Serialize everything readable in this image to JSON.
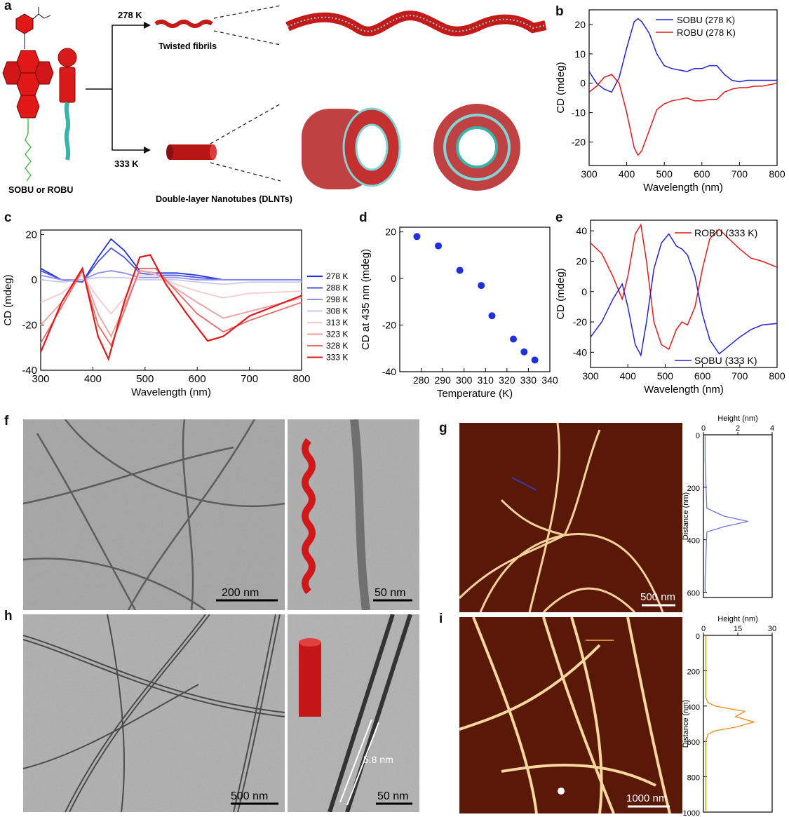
{
  "panels": {
    "a": "a",
    "b": "b",
    "c": "c",
    "d": "d",
    "e": "e",
    "f": "f",
    "g": "g",
    "h": "h",
    "i": "i"
  },
  "scheme": {
    "molecule_label": "SOBU or ROBU",
    "temp_low": "278 K",
    "temp_high": "333 K",
    "low_product": "Twisted fibrils",
    "high_product": "Double-layer Nanotubes (DLNTs)"
  },
  "colors": {
    "blue": "#2323d6",
    "red": "#e01818",
    "orange": "#f08a18",
    "fibril_red": "#c41a1a",
    "cyan": "#7fd5d5"
  },
  "chart_data": [
    {
      "id": "b",
      "type": "line",
      "xlabel": "Wavelength (nm)",
      "ylabel": "CD (mdeg)",
      "xlim": [
        300,
        800
      ],
      "ylim": [
        -28,
        25
      ],
      "xticks": [
        300,
        400,
        500,
        600,
        700,
        800
      ],
      "yticks": [
        -20,
        -10,
        0,
        10,
        20
      ],
      "legend_position": "top-right",
      "series": [
        {
          "name": "SOBU (278 K)",
          "color": "#2323d6",
          "x": [
            300,
            320,
            340,
            360,
            380,
            400,
            420,
            430,
            440,
            460,
            480,
            500,
            520,
            540,
            560,
            580,
            600,
            620,
            640,
            660,
            680,
            700,
            720,
            740,
            760,
            780,
            800
          ],
          "y": [
            4,
            0,
            -2,
            -3,
            2,
            12,
            21,
            22,
            21,
            17,
            10,
            6,
            5,
            4.5,
            4,
            5,
            5,
            6,
            6,
            3,
            1,
            0.5,
            1,
            1,
            1,
            1,
            1
          ]
        },
        {
          "name": "ROBU (278 K)",
          "color": "#e01818",
          "x": [
            300,
            320,
            340,
            360,
            380,
            400,
            420,
            430,
            440,
            460,
            480,
            500,
            520,
            540,
            560,
            580,
            600,
            620,
            640,
            660,
            680,
            700,
            720,
            740,
            760,
            780,
            800
          ],
          "y": [
            -3,
            -1,
            2,
            3,
            0,
            -10,
            -22,
            -24.5,
            -23,
            -16,
            -9,
            -7,
            -6,
            -5.5,
            -5,
            -6,
            -6,
            -5.5,
            -5.5,
            -3,
            -2,
            -1.5,
            -1.5,
            -1,
            -1,
            -0.5,
            0
          ]
        }
      ]
    },
    {
      "id": "c",
      "type": "line",
      "xlabel": "Wavelength (nm)",
      "ylabel": "CD (mdeg)",
      "xlim": [
        300,
        800
      ],
      "ylim": [
        -40,
        22
      ],
      "xticks": [
        300,
        400,
        500,
        600,
        700,
        800
      ],
      "yticks": [
        -40,
        -20,
        0,
        20
      ],
      "legend_position": "right",
      "series": [
        {
          "name": "278 K",
          "color": "#1f2fe0",
          "x": [
            300,
            340,
            380,
            410,
            435,
            460,
            490,
            520,
            560,
            600,
            650,
            700,
            800
          ],
          "y": [
            5,
            0,
            -1,
            10,
            18,
            13,
            4,
            3,
            3,
            2,
            0,
            0,
            0
          ]
        },
        {
          "name": "288 K",
          "color": "#4a55e0",
          "x": [
            300,
            340,
            380,
            410,
            435,
            460,
            490,
            520,
            560,
            600,
            650,
            700,
            800
          ],
          "y": [
            4,
            0,
            -1,
            8,
            14,
            10,
            3,
            2,
            2,
            1,
            0,
            0,
            0
          ]
        },
        {
          "name": "298 K",
          "color": "#8c90ee",
          "x": [
            300,
            340,
            380,
            410,
            435,
            460,
            490,
            520,
            560,
            600,
            650,
            700,
            800
          ],
          "y": [
            2,
            0,
            0,
            3,
            4,
            3,
            1,
            1,
            1,
            0,
            0,
            0,
            0
          ]
        },
        {
          "name": "308 K",
          "color": "#c9c9f2",
          "x": [
            300,
            340,
            380,
            410,
            435,
            460,
            490,
            520,
            560,
            600,
            650,
            700,
            800
          ],
          "y": [
            0,
            -1,
            0,
            1,
            1,
            1,
            0,
            0,
            0,
            -1,
            -2,
            -1,
            -1
          ]
        },
        {
          "name": "313 K",
          "color": "#f4cccc",
          "x": [
            300,
            340,
            380,
            410,
            435,
            460,
            490,
            520,
            560,
            600,
            650,
            700,
            800
          ],
          "y": [
            -10,
            -6,
            2,
            -8,
            -15,
            -8,
            2,
            2,
            -2,
            -5,
            -8,
            -6,
            -5
          ]
        },
        {
          "name": "323 K",
          "color": "#ee9d9d",
          "x": [
            300,
            340,
            380,
            410,
            435,
            460,
            490,
            520,
            560,
            600,
            650,
            700,
            800
          ],
          "y": [
            -20,
            -10,
            4,
            -15,
            -25,
            -12,
            4,
            3,
            -4,
            -10,
            -17,
            -14,
            -8
          ]
        },
        {
          "name": "328 K",
          "color": "#e86a6a",
          "x": [
            300,
            340,
            380,
            410,
            435,
            460,
            490,
            520,
            560,
            600,
            650,
            700,
            800
          ],
          "y": [
            -28,
            -12,
            4,
            -20,
            -29,
            -14,
            5,
            5,
            -5,
            -15,
            -23,
            -18,
            -10
          ]
        },
        {
          "name": "333 K",
          "color": "#e01818",
          "x": [
            300,
            340,
            380,
            410,
            430,
            460,
            490,
            510,
            540,
            580,
            620,
            650,
            700,
            800
          ],
          "y": [
            -32,
            -10,
            5,
            -25,
            -35,
            -10,
            10,
            11,
            -2,
            -15,
            -27,
            -25,
            -16,
            -7
          ]
        }
      ]
    },
    {
      "id": "d",
      "type": "scatter",
      "xlabel": "Temperature (K)",
      "ylabel": "CD at 435 nm (mdeg)",
      "xlim": [
        270,
        340
      ],
      "ylim": [
        -40,
        22
      ],
      "xticks": [
        280,
        290,
        300,
        310,
        320,
        330,
        340
      ],
      "yticks": [
        -40,
        -20,
        0,
        20
      ],
      "color": "#1f2fe0",
      "x": [
        278,
        288,
        298,
        308,
        313,
        323,
        328,
        333
      ],
      "y": [
        18,
        14,
        3.5,
        -3,
        -16,
        -26,
        -31.5,
        -35
      ]
    },
    {
      "id": "e",
      "type": "line",
      "xlabel": "Wavelength (nm)",
      "ylabel": "CD (mdeg)",
      "xlim": [
        300,
        800
      ],
      "ylim": [
        -50,
        47
      ],
      "xticks": [
        300,
        400,
        500,
        600,
        700,
        800
      ],
      "yticks": [
        -40,
        -20,
        0,
        20,
        40
      ],
      "series": [
        {
          "name": "ROBU (333 K)",
          "color": "#e01818",
          "x": [
            300,
            330,
            360,
            385,
            400,
            420,
            435,
            450,
            470,
            490,
            510,
            530,
            545,
            560,
            580,
            600,
            620,
            645,
            670,
            700,
            730,
            760,
            800
          ],
          "y": [
            32,
            25,
            10,
            -5,
            10,
            38,
            44,
            20,
            -20,
            -35,
            -38,
            -25,
            -20,
            -22,
            -10,
            15,
            35,
            41,
            35,
            28,
            22,
            20,
            16
          ]
        },
        {
          "name": "SOBU (333 K)",
          "color": "#2323d6",
          "x": [
            300,
            330,
            360,
            385,
            400,
            420,
            435,
            450,
            470,
            490,
            510,
            530,
            545,
            560,
            580,
            600,
            620,
            645,
            670,
            700,
            730,
            760,
            800
          ],
          "y": [
            -30,
            -20,
            -5,
            5,
            -10,
            -35,
            -42,
            -20,
            15,
            32,
            38,
            30,
            28,
            24,
            10,
            -15,
            -32,
            -41,
            -36,
            -30,
            -25,
            -22,
            -21
          ]
        }
      ],
      "legend_labels": {
        "top": "ROBU (333 K)",
        "bottom": "SOBU (333 K)"
      }
    },
    {
      "id": "g_profile",
      "type": "line",
      "xlabel": "Height (nm)",
      "ylabel": "Distance (nm)",
      "xlim": [
        0,
        4
      ],
      "ylim": [
        0,
        620
      ],
      "xticks": [
        0,
        2,
        4
      ],
      "yticks": [
        0,
        200,
        400,
        600
      ],
      "color": "#6b74e8",
      "series": [
        {
          "name": "",
          "x": [
            0.1,
            0.1,
            0.15,
            0.2,
            1.2,
            2.6,
            1.2,
            0.2,
            0.15,
            0.1,
            0.1
          ],
          "y": [
            0,
            100,
            200,
            280,
            310,
            330,
            350,
            370,
            450,
            550,
            600
          ]
        }
      ]
    },
    {
      "id": "i_profile",
      "type": "line",
      "xlabel": "Height (nm)",
      "ylabel": "Distance (nm)",
      "xlim": [
        0,
        30
      ],
      "ylim": [
        0,
        1000
      ],
      "xticks": [
        0,
        15,
        30
      ],
      "yticks": [
        0,
        200,
        400,
        600,
        800,
        1000
      ],
      "color": "#f08a18",
      "series": [
        {
          "name": "",
          "x": [
            1,
            1,
            1,
            2,
            5,
            18,
            14,
            22,
            14,
            5,
            2,
            1,
            1,
            1
          ],
          "y": [
            0,
            200,
            350,
            380,
            400,
            430,
            460,
            490,
            520,
            540,
            560,
            600,
            800,
            1000
          ]
        }
      ]
    }
  ],
  "scale_bars": {
    "f_left": "200 nm",
    "f_right": "50 nm",
    "g": "500 nm",
    "h_left": "500 nm",
    "h_right": "50 nm",
    "h_measure": "5.8 nm",
    "i": "1000 nm"
  }
}
